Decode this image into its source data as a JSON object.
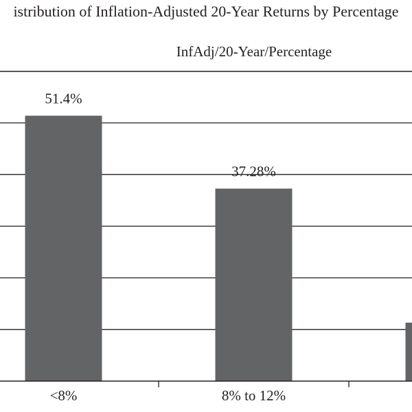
{
  "chart_data": {
    "type": "bar",
    "title": "istribution of Inflation-Adjusted 20-Year Returns by Percentage",
    "subtitle": "InfAdj/20-Year/Percentage",
    "categories": [
      "<8%",
      "8% to 12%",
      ""
    ],
    "values": [
      51.4,
      37.28,
      11.32
    ],
    "data_labels": [
      "51.4%",
      "37.28%",
      ""
    ],
    "ylim": [
      0,
      60
    ],
    "grid": true,
    "bar_color": "#636466",
    "grid_color": "#231f20"
  }
}
